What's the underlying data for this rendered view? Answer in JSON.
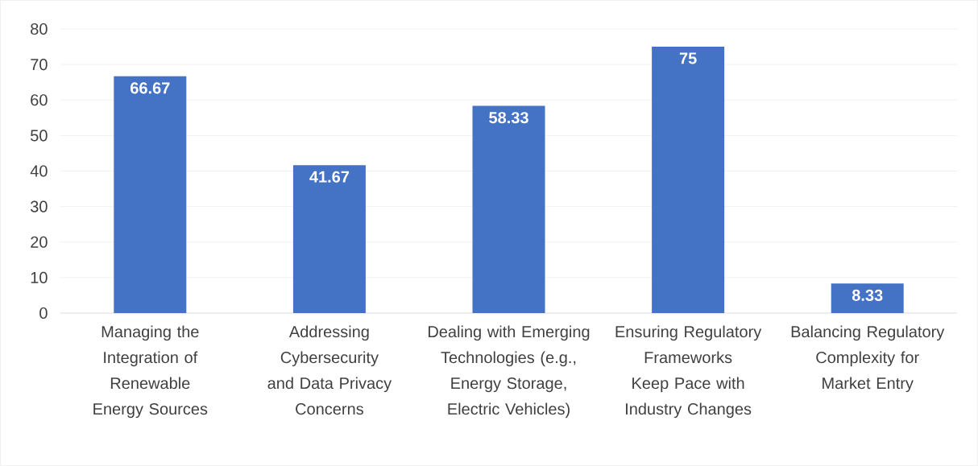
{
  "chart_data": {
    "type": "bar",
    "categories": [
      "Managing the Integration of Renewable Energy Sources",
      "Addressing Cybersecurity and Data Privacy Concerns",
      "Dealing with Emerging Technologies (e.g., Energy Storage, Electric Vehicles)",
      "Ensuring Regulatory Frameworks Keep Pace with Industry Changes",
      "Balancing Regulatory Complexity for Market Entry"
    ],
    "values": [
      66.67,
      41.67,
      58.33,
      75,
      8.33
    ],
    "color": "#4472c4",
    "ylim": [
      0,
      80
    ],
    "yticks": [
      0,
      10,
      20,
      30,
      40,
      50,
      60,
      70,
      80
    ],
    "grid": "y",
    "data_labels": true
  }
}
